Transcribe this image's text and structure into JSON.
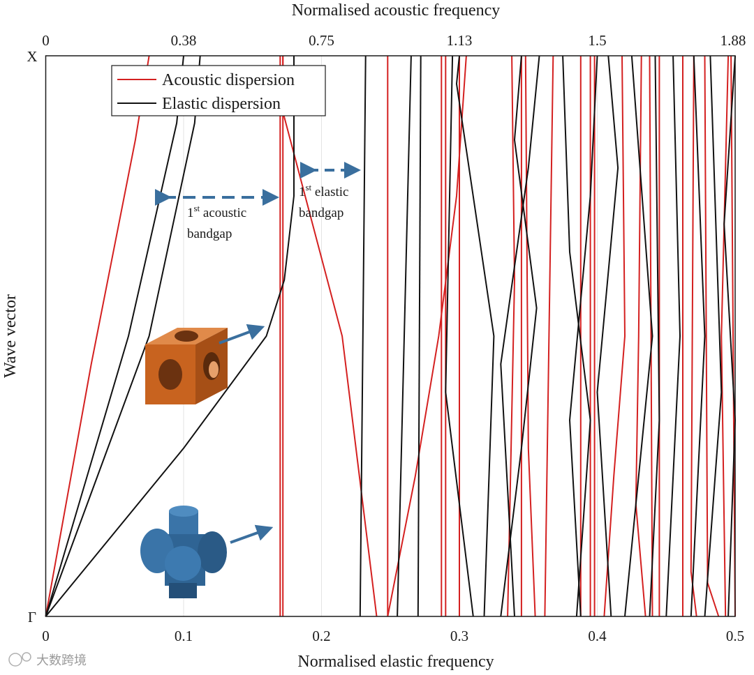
{
  "chart_data": {
    "type": "line",
    "title": "",
    "xlabel": "Normalised elastic frequency",
    "ylabel": "Wave vector",
    "x2label": "Normalised acoustic frequency",
    "xlim": [
      0,
      0.5
    ],
    "x2lim": [
      0,
      1.88
    ],
    "xticks": [
      "0",
      "0.1",
      "0.2",
      "0.3",
      "0.4",
      "0.5"
    ],
    "x2ticks": [
      "0",
      "0.38",
      "0.75",
      "1.13",
      "1.5",
      "1.88"
    ],
    "yticks": [
      "X",
      "Γ"
    ],
    "grid": true,
    "legend_position": "top-left",
    "y_param": "wave vector fraction from Γ (0) to X (1)",
    "series": [
      {
        "name": "Acoustic dispersion",
        "color": "#d42020",
        "branches": [
          [
            [
              0,
              0
            ],
            [
              0.033,
              0.45
            ],
            [
              0.065,
              0.85
            ],
            [
              0.075,
              1.0
            ]
          ],
          [
            [
              0.17,
              0
            ],
            [
              0.17,
              1.0
            ]
          ],
          [
            [
              0.172,
              0
            ],
            [
              0.172,
              1.0
            ]
          ],
          [
            [
              0.24,
              0
            ],
            [
              0.215,
              0.5
            ],
            [
              0.172,
              0.9
            ],
            [
              0.172,
              1.0
            ]
          ],
          [
            [
              0.248,
              0
            ],
            [
              0.268,
              0.25
            ],
            [
              0.285,
              0.5
            ],
            [
              0.298,
              0.75
            ],
            [
              0.305,
              1.0
            ]
          ],
          [
            [
              0.248,
              0
            ],
            [
              0.248,
              1.0
            ]
          ],
          [
            [
              0.287,
              0
            ],
            [
              0.287,
              1.0
            ]
          ],
          [
            [
              0.29,
              0
            ],
            [
              0.29,
              1.0
            ]
          ],
          [
            [
              0.3,
              0
            ],
            [
              0.3,
              1.0
            ]
          ],
          [
            [
              0.335,
              0
            ],
            [
              0.34,
              0.6
            ],
            [
              0.338,
              1.0
            ]
          ],
          [
            [
              0.345,
              0
            ],
            [
              0.345,
              1.0
            ]
          ],
          [
            [
              0.355,
              0
            ],
            [
              0.35,
              0.3
            ],
            [
              0.348,
              1.0
            ]
          ],
          [
            [
              0.362,
              0
            ],
            [
              0.368,
              1.0
            ]
          ],
          [
            [
              0.388,
              0
            ],
            [
              0.388,
              1.0
            ]
          ],
          [
            [
              0.395,
              0
            ],
            [
              0.395,
              1.0
            ]
          ],
          [
            [
              0.398,
              0
            ],
            [
              0.398,
              1.0
            ]
          ],
          [
            [
              0.405,
              0
            ],
            [
              0.412,
              0.25
            ],
            [
              0.42,
              0.5
            ],
            [
              0.418,
              1.0
            ]
          ],
          [
            [
              0.435,
              0
            ],
            [
              0.428,
              0.2
            ],
            [
              0.43,
              0.5
            ],
            [
              0.432,
              1.0
            ]
          ],
          [
            [
              0.44,
              0
            ],
            [
              0.438,
              1.0
            ]
          ],
          [
            [
              0.445,
              0
            ],
            [
              0.445,
              1.0
            ]
          ],
          [
            [
              0.462,
              0
            ],
            [
              0.462,
              1.0
            ]
          ],
          [
            [
              0.472,
              0
            ],
            [
              0.468,
              0.08
            ],
            [
              0.47,
              1.0
            ]
          ],
          [
            [
              0.488,
              0
            ],
            [
              0.48,
              0.06
            ],
            [
              0.478,
              1.0
            ]
          ],
          [
            [
              0.493,
              0
            ],
            [
              0.49,
              0.5
            ],
            [
              0.495,
              1.0
            ]
          ],
          [
            [
              0.5,
              0
            ],
            [
              0.497,
              1.0
            ]
          ]
        ]
      },
      {
        "name": "Elastic dispersion",
        "color": "#111111",
        "branches": [
          [
            [
              0,
              0
            ],
            [
              0.06,
              0.5
            ],
            [
              0.095,
              0.88
            ],
            [
              0.1,
              1.0
            ]
          ],
          [
            [
              0,
              0
            ],
            [
              0.075,
              0.5
            ],
            [
              0.108,
              0.88
            ],
            [
              0.112,
              1.0
            ]
          ],
          [
            [
              0,
              0
            ],
            [
              0.1,
              0.3
            ],
            [
              0.16,
              0.5
            ],
            [
              0.173,
              0.6
            ],
            [
              0.18,
              0.75
            ],
            [
              0.18,
              1.0
            ]
          ],
          [
            [
              0.228,
              0
            ],
            [
              0.23,
              0.5
            ],
            [
              0.232,
              1.0
            ]
          ],
          [
            [
              0.255,
              0
            ],
            [
              0.26,
              0.5
            ],
            [
              0.265,
              1.0
            ]
          ],
          [
            [
              0.27,
              0
            ],
            [
              0.272,
              1.0
            ]
          ],
          [
            [
              0.31,
              0
            ],
            [
              0.29,
              0.4
            ],
            [
              0.295,
              1.0
            ]
          ],
          [
            [
              0.318,
              0
            ],
            [
              0.325,
              0.5
            ],
            [
              0.298,
              0.95
            ],
            [
              0.3,
              1.0
            ]
          ],
          [
            [
              0.33,
              0
            ],
            [
              0.345,
              0.3
            ],
            [
              0.356,
              0.55
            ],
            [
              0.34,
              0.85
            ],
            [
              0.345,
              1.0
            ]
          ],
          [
            [
              0.34,
              0
            ],
            [
              0.33,
              0.45
            ],
            [
              0.35,
              0.8
            ],
            [
              0.358,
              1.0
            ]
          ],
          [
            [
              0.385,
              0
            ],
            [
              0.395,
              0.35
            ],
            [
              0.38,
              0.65
            ],
            [
              0.375,
              1.0
            ]
          ],
          [
            [
              0.388,
              0
            ],
            [
              0.38,
              0.35
            ],
            [
              0.395,
              0.75
            ],
            [
              0.4,
              1.0
            ]
          ],
          [
            [
              0.41,
              0
            ],
            [
              0.4,
              0.4
            ],
            [
              0.415,
              0.8
            ],
            [
              0.408,
              1.0
            ]
          ],
          [
            [
              0.42,
              0
            ],
            [
              0.44,
              0.5
            ],
            [
              0.425,
              1.0
            ]
          ],
          [
            [
              0.438,
              0
            ],
            [
              0.445,
              0.35
            ],
            [
              0.442,
              1.0
            ]
          ],
          [
            [
              0.45,
              0
            ],
            [
              0.46,
              0.5
            ],
            [
              0.455,
              1.0
            ]
          ],
          [
            [
              0.468,
              0
            ],
            [
              0.478,
              0.5
            ],
            [
              0.47,
              1.0
            ]
          ],
          [
            [
              0.478,
              0
            ],
            [
              0.49,
              0.4
            ],
            [
              0.482,
              1.0
            ]
          ],
          [
            [
              0.495,
              0
            ],
            [
              0.5,
              0.35
            ],
            [
              0.492,
              0.7
            ],
            [
              0.5,
              1.0
            ]
          ]
        ]
      }
    ],
    "annotations": {
      "acoustic_gap": {
        "sup": "st",
        "line1_prefix": "1",
        "line1_suffix": " acoustic",
        "line2": "bandgap"
      },
      "elastic_gap": {
        "sup": "st",
        "line1_prefix": "1",
        "line1_suffix": " elastic",
        "line2": "bandgap"
      }
    }
  },
  "colors": {
    "acoustic": "#d42020",
    "elastic": "#111111",
    "arrow": "#3a6f9e",
    "cube": "#c8631f",
    "cross_shape": "#2f6494"
  },
  "watermark": "大数跨境"
}
